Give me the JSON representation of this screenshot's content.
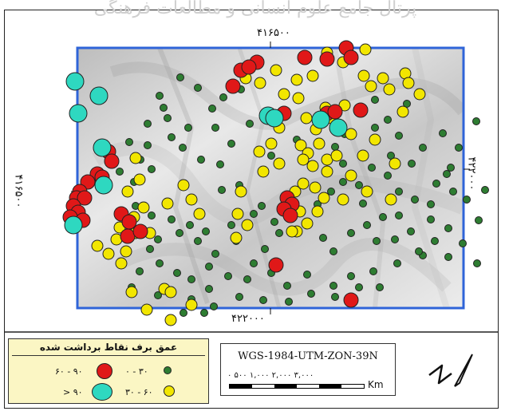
{
  "watermark": "پرتال جامع علوم انسانی و مطالعات فرهنگی",
  "coords": {
    "top": "۴۱۶۵۰۰",
    "bottom": "۴۲۲۰۰۰",
    "left": "۴۱۶۵۰۰",
    "right": "۴۲۲۰۰۰"
  },
  "legend": {
    "title": "عمق برف نقاط برداشت شده",
    "classes": [
      {
        "label": "۰ - ۳۰",
        "color": "#2e7d32",
        "size": "small"
      },
      {
        "label": "۳۰ - ۶۰",
        "color": "#f2e600",
        "size": "medium"
      },
      {
        "label": "۶۰ - ۹۰",
        "color": "#e01818",
        "size": "large"
      },
      {
        "label": "> ۹۰",
        "color": "#2ed8c0",
        "size": "xlarge"
      }
    ]
  },
  "projection": "WGS-1984-UTM-ZON-39N",
  "scale": {
    "labels": "۰   ۵۰۰ ۱,۰۰۰     ۲,۰۰۰      ۳,۰۰۰",
    "unit": "Km"
  },
  "colors": {
    "frame_blue": "#2f64d8",
    "relief_base": "#d9d9d9"
  },
  "points": {
    "green": [
      [
        226,
        97
      ],
      [
        248,
        110
      ],
      [
        302,
        112
      ],
      [
        266,
        136
      ],
      [
        200,
        120
      ],
      [
        205,
        135
      ],
      [
        185,
        155
      ],
      [
        210,
        148
      ],
      [
        215,
        172
      ],
      [
        185,
        182
      ],
      [
        162,
        178
      ],
      [
        176,
        200
      ],
      [
        190,
        212
      ],
      [
        168,
        228
      ],
      [
        150,
        215
      ],
      [
        160,
        240
      ],
      [
        170,
        258
      ],
      [
        190,
        270
      ],
      [
        215,
        275
      ],
      [
        238,
        282
      ],
      [
        198,
        300
      ],
      [
        225,
        292
      ],
      [
        248,
        302
      ],
      [
        270,
        318
      ],
      [
        296,
        302
      ],
      [
        258,
        290
      ],
      [
        290,
        282
      ],
      [
        332,
        312
      ],
      [
        350,
        292
      ],
      [
        318,
        268
      ],
      [
        344,
        278
      ],
      [
        328,
        258
      ],
      [
        300,
        232
      ],
      [
        278,
        238
      ],
      [
        276,
        206
      ],
      [
        252,
        200
      ],
      [
        290,
        180
      ],
      [
        313,
        155
      ],
      [
        236,
        160
      ],
      [
        229,
        185
      ],
      [
        340,
        195
      ],
      [
        395,
        160
      ],
      [
        372,
        175
      ],
      [
        420,
        184
      ],
      [
        432,
        168
      ],
      [
        455,
        140
      ],
      [
        470,
        125
      ],
      [
        486,
        150
      ],
      [
        500,
        170
      ],
      [
        516,
        205
      ],
      [
        530,
        185
      ],
      [
        555,
        167
      ],
      [
        575,
        185
      ],
      [
        597,
        152
      ],
      [
        560,
        218
      ],
      [
        568,
        240
      ],
      [
        540,
        256
      ],
      [
        520,
        250
      ],
      [
        500,
        240
      ],
      [
        486,
        220
      ],
      [
        466,
        210
      ],
      [
        450,
        232
      ],
      [
        430,
        228
      ],
      [
        415,
        240
      ],
      [
        398,
        256
      ],
      [
        385,
        280
      ],
      [
        405,
        298
      ],
      [
        418,
        315
      ],
      [
        440,
        292
      ],
      [
        460,
        282
      ],
      [
        472,
        302
      ],
      [
        495,
        300
      ],
      [
        515,
        290
      ],
      [
        540,
        275
      ],
      [
        562,
        286
      ],
      [
        580,
        305
      ],
      [
        562,
        322
      ],
      [
        545,
        302
      ],
      [
        530,
        320
      ],
      [
        600,
        276
      ],
      [
        608,
        238
      ],
      [
        585,
        250
      ],
      [
        498,
        330
      ],
      [
        468,
        340
      ],
      [
        440,
        346
      ],
      [
        418,
        358
      ],
      [
        385,
        344
      ],
      [
        360,
        358
      ],
      [
        340,
        342
      ],
      [
        318,
        330
      ],
      [
        310,
        350
      ],
      [
        286,
        346
      ],
      [
        262,
        334
      ],
      [
        240,
        350
      ],
      [
        222,
        342
      ],
      [
        200,
        330
      ],
      [
        188,
        312
      ],
      [
        175,
        340
      ],
      [
        165,
        360
      ],
      [
        198,
        370
      ],
      [
        240,
        375
      ],
      [
        262,
        362
      ],
      [
        300,
        372
      ],
      [
        330,
        376
      ],
      [
        362,
        378
      ],
      [
        390,
        368
      ],
      [
        420,
        372
      ],
      [
        450,
        360
      ],
      [
        476,
        360
      ],
      [
        268,
        384
      ],
      [
        256,
        392
      ],
      [
        230,
        392
      ],
      [
        480,
        272
      ],
      [
        500,
        270
      ],
      [
        525,
        315
      ],
      [
        565,
        210
      ],
      [
        547,
        230
      ],
      [
        598,
        330
      ],
      [
        430,
        205
      ],
      [
        455,
        255
      ],
      [
        490,
        195
      ],
      [
        470,
        160
      ],
      [
        510,
        130
      ],
      [
        270,
        160
      ],
      [
        280,
        122
      ]
    ],
    "yellow": [
      [
        430,
        78
      ],
      [
        410,
        66
      ],
      [
        458,
        62
      ],
      [
        392,
        95
      ],
      [
        372,
        100
      ],
      [
        346,
        88
      ],
      [
        356,
        118
      ],
      [
        374,
        123
      ],
      [
        308,
        98
      ],
      [
        326,
        104
      ],
      [
        384,
        148
      ],
      [
        396,
        162
      ],
      [
        415,
        148
      ],
      [
        432,
        132
      ],
      [
        456,
        95
      ],
      [
        465,
        108
      ],
      [
        480,
        98
      ],
      [
        508,
        92
      ],
      [
        512,
        104
      ],
      [
        526,
        118
      ],
      [
        488,
        112
      ],
      [
        377,
        182
      ],
      [
        386,
        192
      ],
      [
        400,
        180
      ],
      [
        410,
        200
      ],
      [
        392,
        208
      ],
      [
        380,
        230
      ],
      [
        395,
        235
      ],
      [
        410,
        215
      ],
      [
        406,
        248
      ],
      [
        398,
        265
      ],
      [
        385,
        280
      ],
      [
        372,
        290
      ],
      [
        376,
        265
      ],
      [
        370,
        240
      ],
      [
        350,
        205
      ],
      [
        330,
        215
      ],
      [
        325,
        190
      ],
      [
        340,
        180
      ],
      [
        302,
        240
      ],
      [
        298,
        268
      ],
      [
        310,
        282
      ],
      [
        296,
        298
      ],
      [
        170,
        198
      ],
      [
        175,
        225
      ],
      [
        160,
        240
      ],
      [
        180,
        260
      ],
      [
        168,
        272
      ],
      [
        150,
        285
      ],
      [
        146,
        300
      ],
      [
        158,
        315
      ],
      [
        170,
        292
      ],
      [
        188,
        292
      ],
      [
        210,
        255
      ],
      [
        230,
        232
      ],
      [
        240,
        250
      ],
      [
        250,
        268
      ],
      [
        122,
        308
      ],
      [
        136,
        318
      ],
      [
        152,
        330
      ],
      [
        165,
        366
      ],
      [
        206,
        362
      ],
      [
        214,
        366
      ],
      [
        240,
        382
      ],
      [
        214,
        401
      ],
      [
        184,
        388
      ],
      [
        408,
        135
      ],
      [
        350,
        160
      ],
      [
        440,
        168
      ],
      [
        470,
        175
      ],
      [
        505,
        140
      ],
      [
        495,
        205
      ],
      [
        455,
        195
      ],
      [
        422,
        195
      ],
      [
        366,
        290
      ],
      [
        380,
        200
      ],
      [
        440,
        220
      ],
      [
        460,
        240
      ],
      [
        490,
        250
      ],
      [
        430,
        250
      ]
    ],
    "red": [
      [
        302,
        88
      ],
      [
        322,
        78
      ],
      [
        312,
        84
      ],
      [
        382,
        72
      ],
      [
        410,
        74
      ],
      [
        434,
        60
      ],
      [
        440,
        72
      ],
      [
        292,
        108
      ],
      [
        452,
        138
      ],
      [
        342,
        148
      ],
      [
        356,
        142
      ],
      [
        410,
        142
      ],
      [
        420,
        140
      ],
      [
        136,
        190
      ],
      [
        140,
        202
      ],
      [
        122,
        218
      ],
      [
        128,
        222
      ],
      [
        110,
        228
      ],
      [
        100,
        240
      ],
      [
        96,
        248
      ],
      [
        106,
        248
      ],
      [
        92,
        258
      ],
      [
        98,
        266
      ],
      [
        88,
        272
      ],
      [
        104,
        276
      ],
      [
        152,
        268
      ],
      [
        162,
        278
      ],
      [
        160,
        296
      ],
      [
        176,
        290
      ],
      [
        360,
        248
      ],
      [
        366,
        256
      ],
      [
        356,
        262
      ],
      [
        364,
        270
      ],
      [
        346,
        332
      ],
      [
        440,
        376
      ]
    ],
    "cyan": [
      [
        94,
        102
      ],
      [
        124,
        120
      ],
      [
        98,
        142
      ],
      [
        128,
        185
      ],
      [
        336,
        145
      ],
      [
        344,
        148
      ],
      [
        402,
        150
      ],
      [
        424,
        160
      ],
      [
        130,
        232
      ],
      [
        92,
        282
      ]
    ]
  }
}
